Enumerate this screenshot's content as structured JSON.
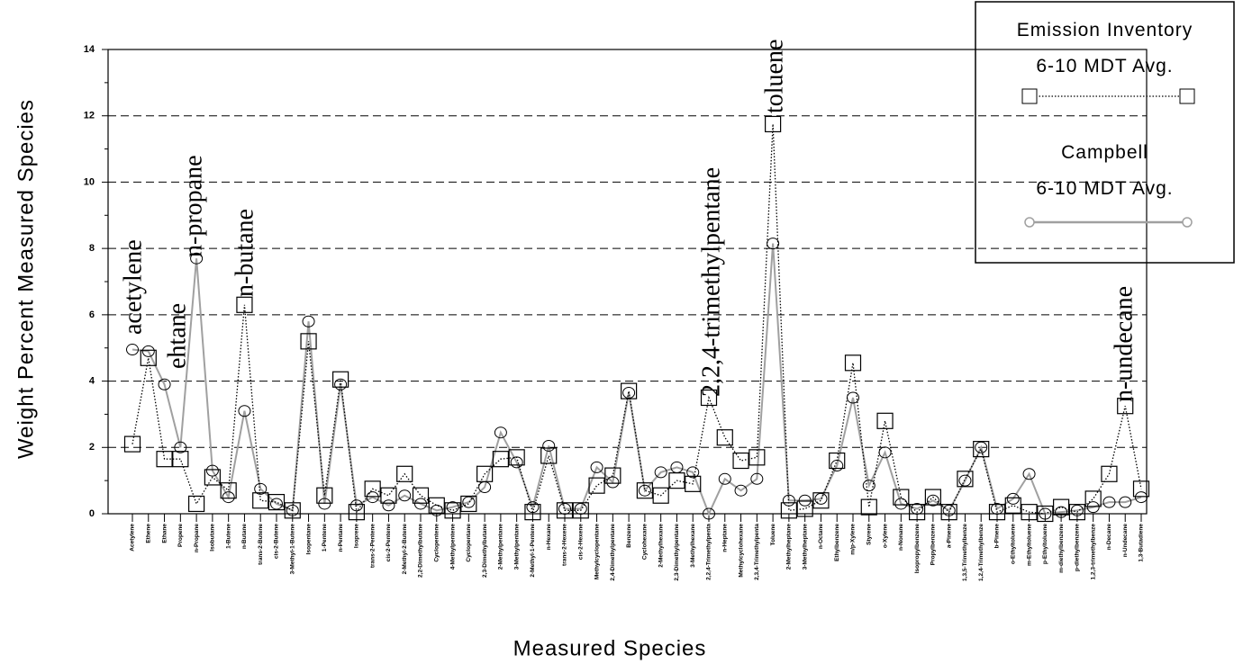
{
  "chart_data": {
    "type": "line",
    "x_label": "Measured Species",
    "y_label": "Weight Percent Measured Species",
    "categories": [
      "Acetylene",
      "Ethene",
      "Ethane",
      "Propene",
      "n-Propane",
      "Isobutane",
      "1-Butene",
      "n-Butane",
      "trans-2-Butene",
      "cis-2-Butene",
      "3-Methyl-1-Butene",
      "Isopentane",
      "1-Pentene",
      "n-Pentane",
      "Isoprene",
      "trans-2-Pentene",
      "cis-2-Pentene",
      "2-Methyl-2-Butene",
      "2,2-Dimethylbutane",
      "Cyclopentene",
      "4-Methylpentene",
      "Cyclopentane",
      "2,3-Dimethylbutane",
      "2-Methylpentane",
      "3-Methylpentane",
      "2-Methyl-1-Pentene",
      "n-Hexane",
      "trans-2-Hexene",
      "cis-2-Hexene",
      "Methylcyclopentane",
      "2,4-Dimethylpentane",
      "Benzene",
      "Cyclohexane",
      "2-Methylhexane",
      "2,3-Dimethylpentane",
      "3-Methylhexane",
      "2,2,4-Trimethylpenta",
      "n-Heptane",
      "Methylcyclohexane",
      "2,3,4-Trimethylpenta",
      "Toluene",
      "2-Methylheptane",
      "3-Methylheptane",
      "n-Octane",
      "Ethylbenzene",
      "m/p-Xylene",
      "Styrene",
      "o-Xylene",
      "n-Nonane",
      "Isopropylbenzene",
      "Propylbenzene",
      "a-Pinene",
      "1,3,5-Trimethylbenze",
      "1,2,4-Trimethylbenze",
      "b-Pinene",
      "o-Ethyltoluene",
      "m-Ethyltoluene",
      "p-Ethyltoluene",
      "m-diethylbenzene",
      "p-diethylbenzene",
      "1,2,3-trimethylbenze",
      "n-Decane",
      "n-Undecane",
      "1,3-Butadiene"
    ],
    "series": [
      {
        "name": "Campbell\n6-10 MDT Avg.",
        "color": "#a0a0a0",
        "marker": "circle",
        "linestyle": "solid",
        "values": [
          4.95,
          4.9,
          3.9,
          2.0,
          7.7,
          1.3,
          0.5,
          3.1,
          0.75,
          0.3,
          0.1,
          5.8,
          0.3,
          3.9,
          0.25,
          0.5,
          0.25,
          0.55,
          0.3,
          0.1,
          0.2,
          0.35,
          0.8,
          2.45,
          1.55,
          0.2,
          2.05,
          0.15,
          0.15,
          1.4,
          0.95,
          3.65,
          0.7,
          1.25,
          1.4,
          1.25,
          0.0,
          1.05,
          0.7,
          1.05,
          8.15,
          0.4,
          0.4,
          0.45,
          1.45,
          3.5,
          0.85,
          1.85,
          0.3,
          0.15,
          0.4,
          0.1,
          1.0,
          2.0,
          0.15,
          0.45,
          1.2,
          0.0,
          0.05,
          0.1,
          0.2,
          0.35,
          0.35,
          0.5
        ]
      },
      {
        "name": "Emission Inventory\n6-10 MDT Avg.",
        "color": "#000000",
        "marker": "square",
        "linestyle": "dotted",
        "values": [
          2.1,
          4.7,
          1.65,
          1.65,
          0.3,
          1.1,
          0.7,
          6.3,
          0.4,
          0.35,
          0.1,
          5.2,
          0.55,
          4.05,
          0.05,
          0.75,
          0.55,
          1.2,
          0.55,
          0.25,
          0.1,
          0.3,
          1.2,
          1.65,
          1.7,
          0.05,
          1.75,
          0.1,
          0.1,
          0.85,
          1.15,
          3.7,
          0.7,
          0.55,
          1.0,
          0.9,
          3.5,
          2.3,
          1.6,
          1.7,
          11.75,
          0.1,
          0.15,
          0.4,
          1.6,
          4.55,
          0.2,
          2.8,
          0.5,
          0.05,
          0.5,
          0.05,
          1.05,
          1.95,
          0.05,
          0.25,
          0.05,
          0.0,
          0.2,
          0.05,
          0.45,
          1.2,
          3.25,
          0.75
        ]
      }
    ],
    "ylim": [
      0,
      14
    ],
    "yticks": [
      0,
      2,
      4,
      6,
      8,
      10,
      12,
      14
    ],
    "grid": true,
    "annotations": [
      "acetylene",
      "ehtane",
      "n-propane",
      "n-butane",
      "2,2,4-trimethylpentane",
      "toluene",
      "n-undecane"
    ],
    "legend": "upper right"
  }
}
